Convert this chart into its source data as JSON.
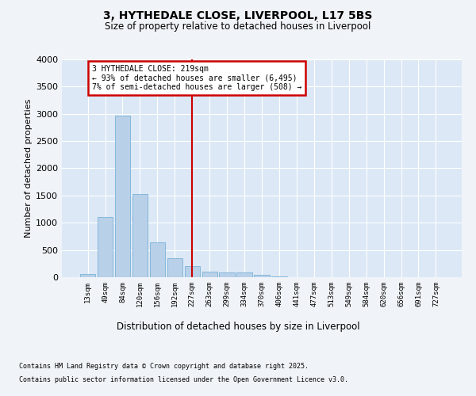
{
  "title_line1": "3, HYTHEDALE CLOSE, LIVERPOOL, L17 5BS",
  "title_line2": "Size of property relative to detached houses in Liverpool",
  "xlabel": "Distribution of detached houses by size in Liverpool",
  "ylabel": "Number of detached properties",
  "bar_labels": [
    "13sqm",
    "49sqm",
    "84sqm",
    "120sqm",
    "156sqm",
    "192sqm",
    "227sqm",
    "263sqm",
    "299sqm",
    "334sqm",
    "370sqm",
    "406sqm",
    "441sqm",
    "477sqm",
    "513sqm",
    "549sqm",
    "584sqm",
    "620sqm",
    "656sqm",
    "691sqm",
    "727sqm"
  ],
  "bar_values": [
    60,
    1100,
    2960,
    1520,
    635,
    350,
    210,
    95,
    85,
    85,
    40,
    20,
    0,
    0,
    0,
    0,
    0,
    0,
    0,
    0,
    0
  ],
  "bar_color": "#b8d0e8",
  "bar_edgecolor": "#6aaad4",
  "background_color": "#dce8f5",
  "grid_color": "#ffffff",
  "ylim": [
    0,
    4000
  ],
  "yticks": [
    0,
    500,
    1000,
    1500,
    2000,
    2500,
    3000,
    3500,
    4000
  ],
  "vline_x_index": 6.0,
  "annotation_title": "3 HYTHEDALE CLOSE: 219sqm",
  "annotation_line2": "← 93% of detached houses are smaller (6,495)",
  "annotation_line3": "7% of semi-detached houses are larger (508) →",
  "vline_color": "#cc0000",
  "annotation_box_edgecolor": "#cc0000",
  "footer_line1": "Contains HM Land Registry data © Crown copyright and database right 2025.",
  "footer_line2": "Contains public sector information licensed under the Open Government Licence v3.0."
}
